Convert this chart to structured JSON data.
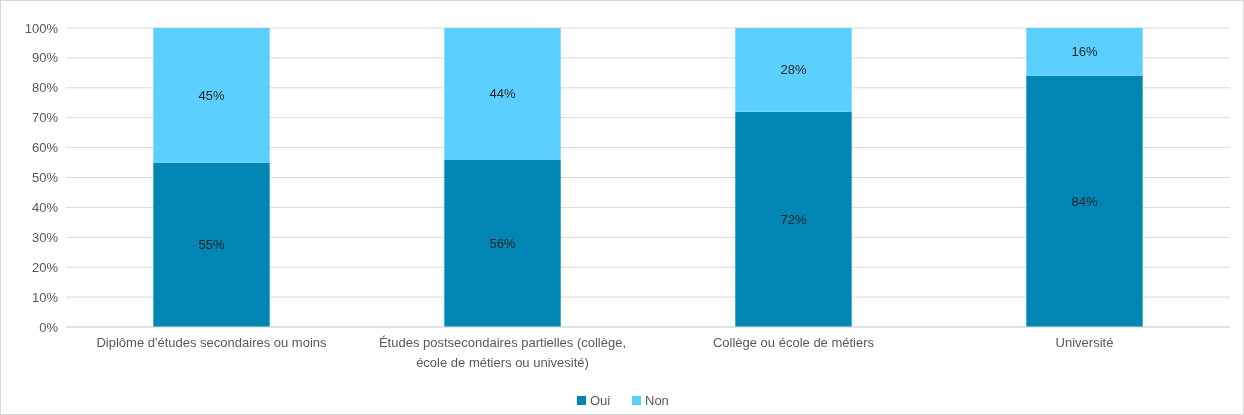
{
  "chart_data": {
    "type": "bar",
    "stacked": true,
    "categories": [
      "Diplôme d'études secondaires ou moins",
      "Études postsecondaires partielles (collège, école de métiers ou univesité)",
      "Collège ou école de métiers",
      "Université"
    ],
    "series": [
      {
        "name": "Oui",
        "color": "#0085b5",
        "values": [
          55,
          56,
          72,
          84
        ],
        "value_labels": [
          "55%",
          "56%",
          "72%",
          "84%"
        ]
      },
      {
        "name": "Non",
        "color": "#5bd0ff",
        "values": [
          45,
          44,
          28,
          16
        ],
        "value_labels": [
          "45%",
          "44%",
          "28%",
          "16%"
        ]
      }
    ],
    "ylim": [
      0,
      100
    ],
    "yticks": [
      {
        "value": 0,
        "label": "0%"
      },
      {
        "value": 10,
        "label": "10%"
      },
      {
        "value": 20,
        "label": "20%"
      },
      {
        "value": 30,
        "label": "30%"
      },
      {
        "value": 40,
        "label": "40%"
      },
      {
        "value": 50,
        "label": "50%"
      },
      {
        "value": 60,
        "label": "60%"
      },
      {
        "value": 70,
        "label": "70%"
      },
      {
        "value": 80,
        "label": "80%"
      },
      {
        "value": 90,
        "label": "90%"
      },
      {
        "value": 100,
        "label": "100%"
      }
    ],
    "grid": "y",
    "legend": "bottom"
  }
}
